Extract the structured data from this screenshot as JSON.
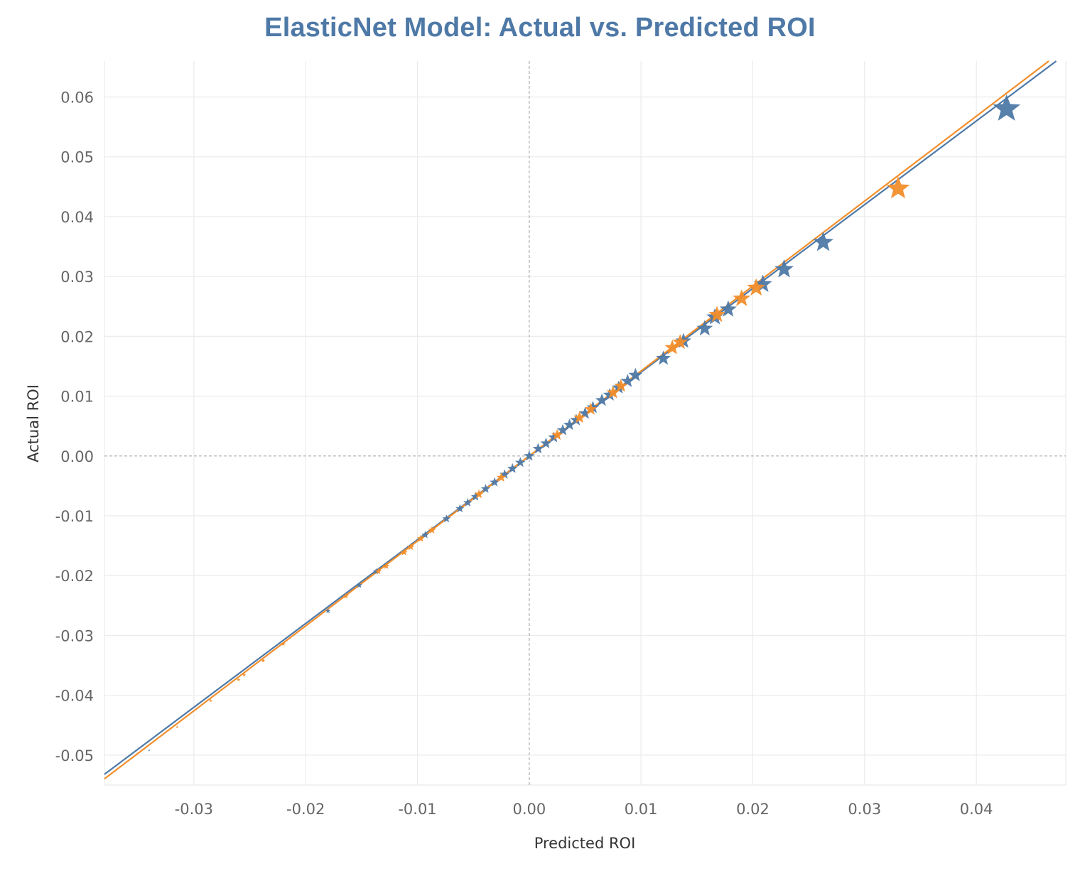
{
  "colors": {
    "blue": "#4e79a7",
    "orange": "#f28e2b",
    "title": "#4e79a7",
    "grid": "#ebebeb",
    "zero_line": "#aaaaaa"
  },
  "chart_data": {
    "type": "scatter",
    "title": "ElasticNet Model: Actual vs. Predicted ROI",
    "xlabel": "Predicted ROI",
    "ylabel": "Actual ROI",
    "xlim": [
      -0.038,
      0.048
    ],
    "ylim": [
      -0.055,
      0.066
    ],
    "x_ticks": [
      -0.03,
      -0.02,
      -0.01,
      0.0,
      0.01,
      0.02,
      0.03,
      0.04
    ],
    "x_tick_labels": [
      "-0.03",
      "-0.02",
      "-0.01",
      "0.00",
      "0.01",
      "0.02",
      "0.03",
      "0.04"
    ],
    "y_ticks": [
      -0.05,
      -0.04,
      -0.03,
      -0.02,
      -0.01,
      0.0,
      0.01,
      0.02,
      0.03,
      0.04,
      0.05,
      0.06
    ],
    "y_tick_labels": [
      "-0.05",
      "-0.04",
      "-0.03",
      "-0.02",
      "-0.01",
      "0.00",
      "0.01",
      "0.02",
      "0.03",
      "0.04",
      "0.05",
      "0.06"
    ],
    "marker": "star",
    "marker_size_encodes": "Actual ROI (larger for higher values)",
    "grid": true,
    "zero_lines": "dashed",
    "legend": "none",
    "series": [
      {
        "color": "#4e79a7",
        "points": [
          [
            -0.034,
            -0.0492
          ],
          [
            -0.018,
            -0.0259
          ],
          [
            -0.0152,
            -0.0216
          ],
          [
            -0.0137,
            -0.0193
          ],
          [
            -0.0093,
            -0.0132
          ],
          [
            -0.0074,
            -0.0105
          ],
          [
            -0.0062,
            -0.0088
          ],
          [
            -0.0055,
            -0.0078
          ],
          [
            -0.0048,
            -0.0068
          ],
          [
            -0.0039,
            -0.0055
          ],
          [
            -0.0031,
            -0.0044
          ],
          [
            -0.0022,
            -0.0031
          ],
          [
            -0.0015,
            -0.0021
          ],
          [
            -0.0008,
            -0.0011
          ],
          [
            0.0,
            0.0
          ],
          [
            0.0008,
            0.0012
          ],
          [
            0.0015,
            0.0021
          ],
          [
            0.0022,
            0.0031
          ],
          [
            0.003,
            0.0043
          ],
          [
            0.0036,
            0.0052
          ],
          [
            0.0042,
            0.006
          ],
          [
            0.005,
            0.0071
          ],
          [
            0.0057,
            0.0081
          ],
          [
            0.0065,
            0.0093
          ],
          [
            0.0072,
            0.0102
          ],
          [
            0.008,
            0.0114
          ],
          [
            0.0088,
            0.0125
          ],
          [
            0.0095,
            0.0135
          ],
          [
            0.012,
            0.0163
          ],
          [
            0.0138,
            0.0192
          ],
          [
            0.0157,
            0.0213
          ],
          [
            0.0166,
            0.0232
          ],
          [
            0.0178,
            0.0245
          ],
          [
            0.0209,
            0.0287
          ],
          [
            0.0228,
            0.0312
          ],
          [
            0.0263,
            0.0357
          ],
          [
            0.0427,
            0.058
          ]
        ]
      },
      {
        "color": "#f28e2b",
        "points": [
          [
            -0.0315,
            -0.0453
          ],
          [
            -0.0285,
            -0.0409
          ],
          [
            -0.0255,
            -0.0366
          ],
          [
            -0.026,
            -0.0374
          ],
          [
            -0.0238,
            -0.0342
          ],
          [
            -0.022,
            -0.0314
          ],
          [
            -0.0164,
            -0.0234
          ],
          [
            -0.0135,
            -0.0193
          ],
          [
            -0.0128,
            -0.0184
          ],
          [
            -0.0112,
            -0.0161
          ],
          [
            -0.0106,
            -0.0152
          ],
          [
            -0.0097,
            -0.0138
          ],
          [
            -0.0087,
            -0.0124
          ],
          [
            -0.0045,
            -0.0064
          ],
          [
            -0.0025,
            -0.0036
          ],
          [
            0.0025,
            0.0035
          ],
          [
            0.0045,
            0.0064
          ],
          [
            0.0055,
            0.0078
          ],
          [
            0.0075,
            0.0106
          ],
          [
            0.0082,
            0.0117
          ],
          [
            0.0128,
            0.0181
          ],
          [
            0.0135,
            0.019
          ],
          [
            0.0168,
            0.0236
          ],
          [
            0.019,
            0.0263
          ],
          [
            0.0203,
            0.0281
          ],
          [
            0.033,
            0.0447
          ]
        ]
      }
    ],
    "trend_lines": [
      {
        "color": "#4e79a7",
        "intercept": 0.0,
        "slope": 1.4
      },
      {
        "color": "#f28e2b",
        "intercept": 0.0,
        "slope": 1.42
      }
    ]
  }
}
